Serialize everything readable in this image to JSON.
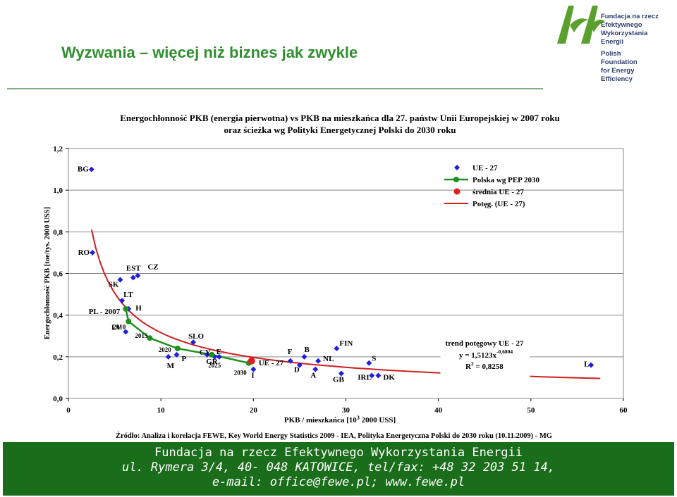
{
  "slide": {
    "title": "Wyzwania – więcej niż biznes jak zwykle"
  },
  "logo": {
    "pl_lines": [
      "Fundacja na rzecz",
      "Efektywnego",
      "Wykorzystania",
      "Energii"
    ],
    "en_lines": [
      "Polish",
      "Foundation",
      "for Energy",
      "Efficiency"
    ],
    "colors": {
      "green": "#5aa02c",
      "navy": "#2c3e6b"
    }
  },
  "chart_data": {
    "type": "scatter",
    "title_lines": [
      "Energochłonność PKB (energia pierwotna) vs PKB na mieszkańca dla 27. państw Unii Europejskiej w 2007 roku",
      "oraz ścieżka wg Polityki Energetycznej Polski do 2030 roku"
    ],
    "xlabel": "PKB  / mieszkańca [10³ 2000 USS]",
    "ylabel": "Energochłonność PKB [toe/tys. 2000 USS]",
    "xlim": [
      0,
      60
    ],
    "ylim": [
      0,
      1.2
    ],
    "x_ticks": [
      "0",
      "10",
      "20",
      "30",
      "40",
      "50",
      "60"
    ],
    "y_ticks": [
      "0,0",
      "0,2",
      "0,4",
      "0,6",
      "0,8",
      "1,0",
      "1,2"
    ],
    "grid": "horizontal",
    "legend_position": "top-right",
    "legend": [
      {
        "label": "UE - 27",
        "marker": "diamond"
      },
      {
        "label": "Polska wg PEP 2030",
        "marker": "line-circle"
      },
      {
        "label": "średnia UE - 27",
        "marker": "circle"
      },
      {
        "label": "Potęg. (UE - 27)",
        "marker": "line"
      }
    ],
    "colors": {
      "eu": "#1f1fe0",
      "pl": "#1f8f1f",
      "avg": "#e01f1f",
      "trend": "#cc1f1f"
    },
    "series": [
      {
        "name": "UE - 27",
        "points": [
          {
            "x": 2.5,
            "y": 1.1,
            "label": "BG"
          },
          {
            "x": 2.6,
            "y": 0.7,
            "label": "RO"
          },
          {
            "x": 5.6,
            "y": 0.57,
            "label": "SK"
          },
          {
            "x": 7.0,
            "y": 0.58,
            "label": "EST"
          },
          {
            "x": 7.5,
            "y": 0.59,
            "label": "CZ"
          },
          {
            "x": 5.8,
            "y": 0.47,
            "label": "LT"
          },
          {
            "x": 6.5,
            "y": 0.43,
            "label": "H"
          },
          {
            "x": 6.2,
            "y": 0.32,
            "label": "LV"
          },
          {
            "x": 13.5,
            "y": 0.27,
            "label": "SLO"
          },
          {
            "x": 10.8,
            "y": 0.2,
            "label": "M"
          },
          {
            "x": 11.7,
            "y": 0.21,
            "label": "P"
          },
          {
            "x": 15.0,
            "y": 0.21,
            "label": "CY"
          },
          {
            "x": 16.3,
            "y": 0.2,
            "label": "E"
          },
          {
            "x": 15.8,
            "y": 0.2,
            "label": "GR"
          },
          {
            "x": 20.0,
            "y": 0.14,
            "label": "I"
          },
          {
            "x": 24.0,
            "y": 0.18,
            "label": "F"
          },
          {
            "x": 25.5,
            "y": 0.2,
            "label": "B"
          },
          {
            "x": 25.0,
            "y": 0.16,
            "label": "D"
          },
          {
            "x": 26.7,
            "y": 0.14,
            "label": "A"
          },
          {
            "x": 27.0,
            "y": 0.18,
            "label": "NL"
          },
          {
            "x": 29.0,
            "y": 0.24,
            "label": "FIN"
          },
          {
            "x": 29.5,
            "y": 0.12,
            "label": "GB"
          },
          {
            "x": 32.5,
            "y": 0.17,
            "label": "S"
          },
          {
            "x": 32.8,
            "y": 0.11,
            "label": "IRL"
          },
          {
            "x": 33.5,
            "y": 0.11,
            "label": "DK"
          },
          {
            "x": 56.5,
            "y": 0.16,
            "label": "L"
          }
        ]
      },
      {
        "name": "Polska wg PEP 2030",
        "points": [
          {
            "x": 6.2,
            "y": 0.43,
            "label": "PL - 2007"
          },
          {
            "x": 6.5,
            "y": 0.37,
            "label": "2010"
          },
          {
            "x": 8.8,
            "y": 0.29,
            "label": "2015"
          },
          {
            "x": 11.8,
            "y": 0.24,
            "label": "2020"
          },
          {
            "x": 15.5,
            "y": 0.21,
            "label": "2025"
          },
          {
            "x": 19.5,
            "y": 0.17,
            "label": "2030"
          }
        ]
      },
      {
        "name": "średnia UE - 27",
        "points": [
          {
            "x": 19.8,
            "y": 0.18,
            "label": "UE - 27"
          }
        ]
      }
    ],
    "trendline": {
      "name": "Potęg. (UE - 27)",
      "a": 1.5123,
      "b": -0.6804,
      "x_from": 2.5,
      "x_to": 57.5
    },
    "trend_box_lines": [
      "trend potęgowy UE - 27",
      "y = 1,5123x",
      "-0,6804",
      "R",
      "2",
      " = 0,8258"
    ],
    "source": "Źródło: Analiza i korelacja FEWE, Key World Energy Statistics 2009 - IEA, Polityka Energetyczna Polski do 2030 roku (10.11.2009) - MG"
  },
  "footer": {
    "line1": "Fundacja na rzecz Efektywnego Wykorzystania Energii",
    "line2": "ul. Rymera 3/4, 40- 048 KATOWICE, tel/fax: +48 32 203 51 14,",
    "line3": "e-mail: office@fewe.pl; www.fewe.pl"
  }
}
